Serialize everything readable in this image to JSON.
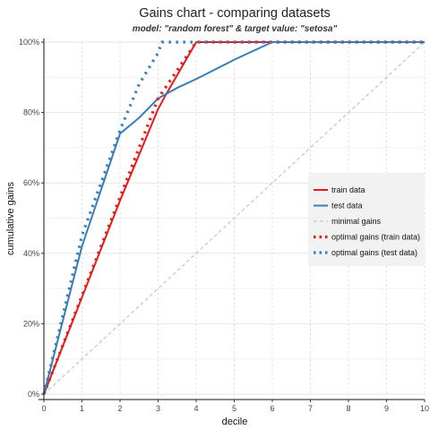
{
  "chart_data": {
    "type": "line",
    "title": "Gains chart - comparing datasets",
    "subtitle": "model: \"random forest\"  &  target value: \"setosa\"",
    "xlabel": "decile",
    "ylabel": "cumulative gains",
    "xlim": [
      0,
      10
    ],
    "ylim": [
      0,
      100
    ],
    "x_ticks": [
      "0",
      "1",
      "2",
      "3",
      "4",
      "5",
      "6",
      "7",
      "8",
      "9",
      "10"
    ],
    "y_ticks": [
      "0%",
      "20%",
      "40%",
      "60%",
      "80%",
      "100%"
    ],
    "grid": true,
    "legend_position": "right",
    "series": [
      {
        "name": "train data",
        "style": "solid",
        "color": "#e41a1c",
        "x": [
          0,
          1,
          2,
          3,
          3.2,
          4,
          5,
          6,
          7,
          8,
          9,
          10
        ],
        "y": [
          0,
          27.5,
          55,
          81,
          85,
          100,
          100,
          100,
          100,
          100,
          100,
          100
        ]
      },
      {
        "name": "test data",
        "style": "solid",
        "color": "#377eb8",
        "x": [
          0,
          1,
          2,
          2.5,
          3,
          3.5,
          4,
          5,
          6,
          7,
          8,
          9,
          10
        ],
        "y": [
          0,
          42,
          74,
          78.5,
          84,
          87,
          89.5,
          95,
          100,
          100,
          100,
          100,
          100
        ]
      },
      {
        "name": "minimal gains",
        "style": "dashed",
        "color": "#bbbbbb",
        "x": [
          0,
          10
        ],
        "y": [
          0,
          100
        ]
      },
      {
        "name": "optimal gains (train data)",
        "style": "dotted",
        "color": "#e41a1c",
        "x": [
          0,
          3,
          4,
          5,
          6,
          7,
          8,
          9,
          10
        ],
        "y": [
          0,
          84,
          100,
          100,
          100,
          100,
          100,
          100,
          100
        ]
      },
      {
        "name": "optimal gains (test data)",
        "style": "dotted",
        "color": "#377eb8",
        "x": [
          0,
          1,
          2,
          2.5,
          3,
          3.1,
          4,
          5,
          6,
          7,
          8,
          9,
          10
        ],
        "y": [
          0,
          45,
          75,
          88,
          97,
          100,
          100,
          100,
          100,
          100,
          100,
          100,
          100
        ]
      }
    ]
  }
}
